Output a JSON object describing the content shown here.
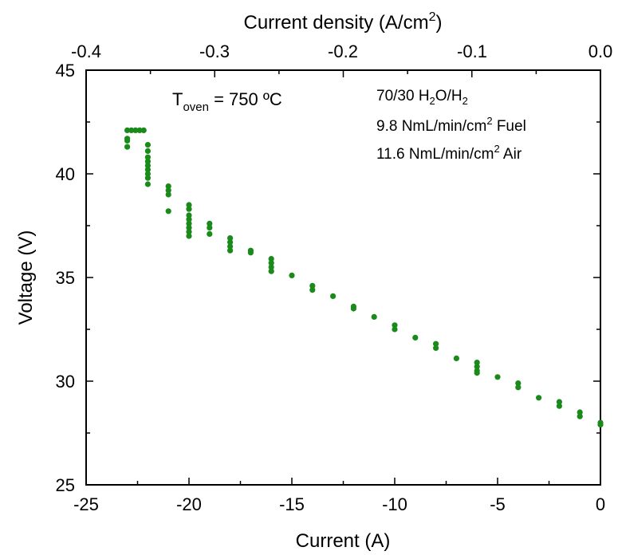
{
  "chart_data": {
    "type": "scatter",
    "xlabel": "Current (A)",
    "ylabel": "Voltage (V)",
    "xlim": [
      -25,
      0
    ],
    "ylim": [
      25,
      45
    ],
    "x_ticks": [
      "-25",
      "-20",
      "-15",
      "-10",
      "-5",
      "0"
    ],
    "y_ticks": [
      "25",
      "30",
      "35",
      "40",
      "45"
    ],
    "top_axis": {
      "label_main": "Current density (A/cm",
      "label_sup": "2",
      "label_end": ")",
      "xlim": [
        -0.4,
        0.0
      ],
      "ticks": [
        "-0.4",
        "-0.3",
        "-0.2",
        "-0.1",
        "0.0"
      ]
    },
    "grid": false,
    "marker_color": "#1a8a1a",
    "annotations": {
      "temp": {
        "main": "T",
        "sub": "oven",
        "rest": " = 750 ºC"
      },
      "line1": {
        "a": "70/30 H",
        "sub1": "2",
        "b": "O/H",
        "sub2": "2"
      },
      "line2": {
        "a": "9.8 NmL/min/cm",
        "sup": "2",
        "b": " Fuel"
      },
      "line3": {
        "a": "11.6 NmL/min/cm",
        "sup": "2",
        "b": " Air"
      }
    },
    "points": [
      {
        "x": -23,
        "y": 41.3
      },
      {
        "x": -23,
        "y": 41.6
      },
      {
        "x": -23,
        "y": 41.7
      },
      {
        "x": -23,
        "y": 42.1
      },
      {
        "x": -22.8,
        "y": 42.1
      },
      {
        "x": -22.6,
        "y": 42.1
      },
      {
        "x": -22.4,
        "y": 42.1
      },
      {
        "x": -22.2,
        "y": 42.1
      },
      {
        "x": -22,
        "y": 41.4
      },
      {
        "x": -22,
        "y": 41.1
      },
      {
        "x": -22,
        "y": 40.8
      },
      {
        "x": -22,
        "y": 40.6
      },
      {
        "x": -22,
        "y": 40.4
      },
      {
        "x": -22,
        "y": 40.2
      },
      {
        "x": -22,
        "y": 40.0
      },
      {
        "x": -22,
        "y": 39.8
      },
      {
        "x": -22,
        "y": 39.5
      },
      {
        "x": -21,
        "y": 39.4
      },
      {
        "x": -21,
        "y": 39.2
      },
      {
        "x": -21,
        "y": 39.0
      },
      {
        "x": -21,
        "y": 38.2
      },
      {
        "x": -20,
        "y": 38.5
      },
      {
        "x": -20,
        "y": 38.3
      },
      {
        "x": -20,
        "y": 38.0
      },
      {
        "x": -20,
        "y": 37.8
      },
      {
        "x": -20,
        "y": 37.6
      },
      {
        "x": -20,
        "y": 37.4
      },
      {
        "x": -20,
        "y": 37.2
      },
      {
        "x": -20,
        "y": 37.0
      },
      {
        "x": -19,
        "y": 37.6
      },
      {
        "x": -19,
        "y": 37.4
      },
      {
        "x": -19,
        "y": 37.1
      },
      {
        "x": -18,
        "y": 36.9
      },
      {
        "x": -18,
        "y": 36.7
      },
      {
        "x": -18,
        "y": 36.5
      },
      {
        "x": -18,
        "y": 36.3
      },
      {
        "x": -17,
        "y": 36.3
      },
      {
        "x": -17,
        "y": 36.2
      },
      {
        "x": -16,
        "y": 35.9
      },
      {
        "x": -16,
        "y": 35.7
      },
      {
        "x": -16,
        "y": 35.5
      },
      {
        "x": -16,
        "y": 35.3
      },
      {
        "x": -15,
        "y": 35.1
      },
      {
        "x": -14,
        "y": 34.6
      },
      {
        "x": -14,
        "y": 34.4
      },
      {
        "x": -13,
        "y": 34.1
      },
      {
        "x": -12,
        "y": 33.6
      },
      {
        "x": -12,
        "y": 33.5
      },
      {
        "x": -11,
        "y": 33.1
      },
      {
        "x": -10,
        "y": 32.7
      },
      {
        "x": -10,
        "y": 32.5
      },
      {
        "x": -9,
        "y": 32.1
      },
      {
        "x": -8,
        "y": 31.8
      },
      {
        "x": -8,
        "y": 31.6
      },
      {
        "x": -7,
        "y": 31.1
      },
      {
        "x": -6,
        "y": 30.9
      },
      {
        "x": -6,
        "y": 30.7
      },
      {
        "x": -6,
        "y": 30.5
      },
      {
        "x": -6,
        "y": 30.4
      },
      {
        "x": -5,
        "y": 30.2
      },
      {
        "x": -4,
        "y": 29.9
      },
      {
        "x": -4,
        "y": 29.7
      },
      {
        "x": -3,
        "y": 29.2
      },
      {
        "x": -2,
        "y": 29.0
      },
      {
        "x": -2,
        "y": 28.8
      },
      {
        "x": -1,
        "y": 28.5
      },
      {
        "x": -1,
        "y": 28.3
      },
      {
        "x": 0,
        "y": 28.0
      },
      {
        "x": 0,
        "y": 27.9
      }
    ]
  }
}
